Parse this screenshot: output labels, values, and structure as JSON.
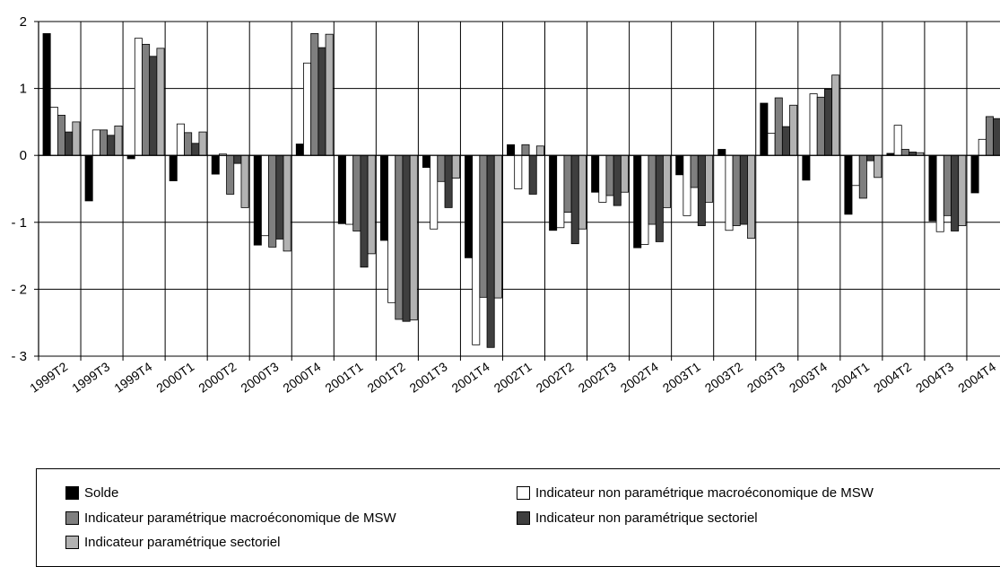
{
  "chart_data": {
    "type": "bar",
    "ylim": [
      -3,
      2
    ],
    "yticks": [
      2,
      1,
      0,
      -1,
      -2,
      -3
    ],
    "ytick_labels": [
      "2",
      "1",
      "0",
      "- 1",
      "- 2",
      "- 3"
    ],
    "grid": true,
    "legend_position": "bottom",
    "categories": [
      "1999T2",
      "1999T3",
      "1999T4",
      "2000T1",
      "2000T2",
      "2000T3",
      "2000T4",
      "2001T1",
      "2001T2",
      "2001T3",
      "2001T4",
      "2002T1",
      "2002T2",
      "2002T3",
      "2002T4",
      "2003T1",
      "2003T2",
      "2003T3",
      "2003T4",
      "2004T1",
      "2004T2",
      "2004T3",
      "2004T4"
    ],
    "series": [
      {
        "name": "Solde",
        "color": "#000000",
        "values": [
          1.82,
          -0.68,
          -0.05,
          -0.38,
          -0.28,
          -1.34,
          0.17,
          -1.02,
          -1.27,
          -0.18,
          -1.53,
          0.16,
          -1.12,
          -0.55,
          -1.38,
          -0.29,
          0.09,
          0.78,
          -0.37,
          -0.88,
          0.03,
          -0.98,
          -0.56
        ]
      },
      {
        "name": "Indicateur non paramétrique macroéconomique de MSW",
        "color": "#ffffff",
        "values": [
          0.72,
          0.38,
          1.75,
          0.47,
          0.02,
          -1.2,
          1.38,
          -1.03,
          -2.2,
          -1.1,
          -2.83,
          -0.5,
          -1.08,
          -0.7,
          -1.33,
          -0.9,
          -1.12,
          0.33,
          0.92,
          -0.45,
          0.45,
          -1.14,
          0.24
        ]
      },
      {
        "name": "Indicateur paramétrique macroéconomique de MSW",
        "color": "#7f7f7f",
        "values": [
          0.6,
          0.38,
          1.66,
          0.34,
          -0.58,
          -1.37,
          1.82,
          -1.13,
          -2.45,
          -0.39,
          -2.12,
          0.16,
          -0.85,
          -0.6,
          -1.03,
          -0.48,
          -1.05,
          0.86,
          0.87,
          -0.64,
          0.09,
          -0.9,
          0.58
        ]
      },
      {
        "name": "Indicateur non paramétrique sectoriel",
        "color": "#3f3f3f",
        "values": [
          0.35,
          0.3,
          1.48,
          0.18,
          -0.12,
          -1.25,
          1.61,
          -1.67,
          -2.48,
          -0.78,
          -2.87,
          -0.58,
          -1.32,
          -0.75,
          -1.29,
          -1.05,
          -1.03,
          0.43,
          0.99,
          -0.08,
          0.05,
          -1.13,
          0.55
        ]
      },
      {
        "name": "Indicateur paramétrique sectoriel",
        "color": "#b2b2b2",
        "values": [
          0.5,
          0.44,
          1.6,
          0.35,
          -0.78,
          -1.43,
          1.81,
          -1.47,
          -2.46,
          -0.34,
          -2.13,
          0.14,
          -1.1,
          -0.55,
          -0.78,
          -0.7,
          -1.24,
          0.75,
          1.2,
          -0.33,
          0.04,
          -1.05,
          0.52
        ]
      }
    ]
  }
}
